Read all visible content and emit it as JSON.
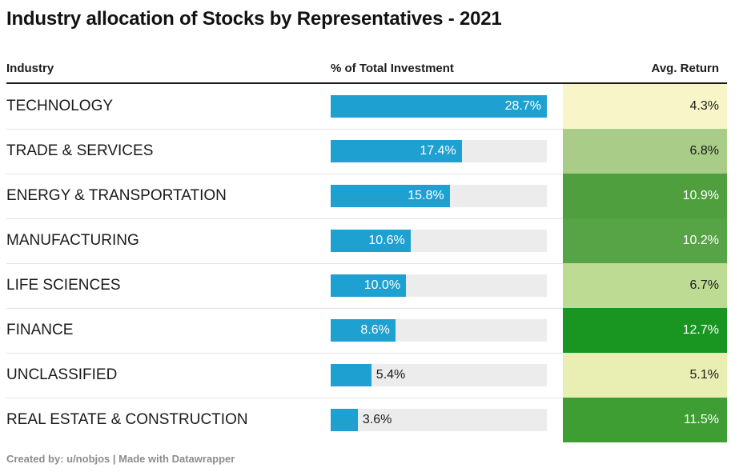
{
  "title": "Industry allocation of Stocks by Representatives - 2021",
  "columns": {
    "industry": "Industry",
    "investment": "% of Total Investment",
    "avg_return": "Avg. Return"
  },
  "footer": "Created by: u/nobjos | Made with Datawrapper",
  "colors": {
    "bar": "#1ea0d0",
    "bar_track": "#ececec",
    "header_rule": "#1a1a1a",
    "row_separator": "#e2e2e2",
    "footer_text": "#8c8c8c"
  },
  "chart_data": {
    "type": "table",
    "title": "Industry allocation of Stocks by Representatives - 2021",
    "columns": [
      "Industry",
      "% of Total Investment",
      "Avg. Return"
    ],
    "bar_scale_max": 28.7,
    "bar_color": "#1ea0d0",
    "heatmap_note": "Avg. Return column shaded yellow (low) to dark green (high)",
    "rows": [
      {
        "industry": "TECHNOLOGY",
        "investment_pct": 28.7,
        "investment_label": "28.7%",
        "bar_label_inside": true,
        "avg_return_pct": 4.3,
        "avg_return_label": "4.3%",
        "cell_color": "#f8f6c8",
        "cell_text_color": "#1a1a1a"
      },
      {
        "industry": "TRADE & SERVICES",
        "investment_pct": 17.4,
        "investment_label": "17.4%",
        "bar_label_inside": true,
        "avg_return_pct": 6.8,
        "avg_return_label": "6.8%",
        "cell_color": "#a9cc88",
        "cell_text_color": "#1a1a1a"
      },
      {
        "industry": "ENERGY & TRANSPORTATION",
        "investment_pct": 15.8,
        "investment_label": "15.8%",
        "bar_label_inside": true,
        "avg_return_pct": 10.9,
        "avg_return_label": "10.9%",
        "cell_color": "#4f9f3e",
        "cell_text_color": "#ffffff"
      },
      {
        "industry": "MANUFACTURING",
        "investment_pct": 10.6,
        "investment_label": "10.6%",
        "bar_label_inside": true,
        "avg_return_pct": 10.2,
        "avg_return_label": "10.2%",
        "cell_color": "#57a446",
        "cell_text_color": "#ffffff"
      },
      {
        "industry": "LIFE SCIENCES",
        "investment_pct": 10.0,
        "investment_label": "10.0%",
        "bar_label_inside": true,
        "avg_return_pct": 6.7,
        "avg_return_label": "6.7%",
        "cell_color": "#bedb94",
        "cell_text_color": "#1a1a1a"
      },
      {
        "industry": "FINANCE",
        "investment_pct": 8.6,
        "investment_label": "8.6%",
        "bar_label_inside": true,
        "avg_return_pct": 12.7,
        "avg_return_label": "12.7%",
        "cell_color": "#189621",
        "cell_text_color": "#ffffff"
      },
      {
        "industry": "UNCLASSIFIED",
        "investment_pct": 5.4,
        "investment_label": "5.4%",
        "bar_label_inside": false,
        "avg_return_pct": 5.1,
        "avg_return_label": "5.1%",
        "cell_color": "#e9efb3",
        "cell_text_color": "#1a1a1a"
      },
      {
        "industry": "REAL ESTATE & CONSTRUCTION",
        "investment_pct": 3.6,
        "investment_label": "3.6%",
        "bar_label_inside": false,
        "avg_return_pct": 11.5,
        "avg_return_label": "11.5%",
        "cell_color": "#3f9e33",
        "cell_text_color": "#ffffff"
      }
    ]
  }
}
